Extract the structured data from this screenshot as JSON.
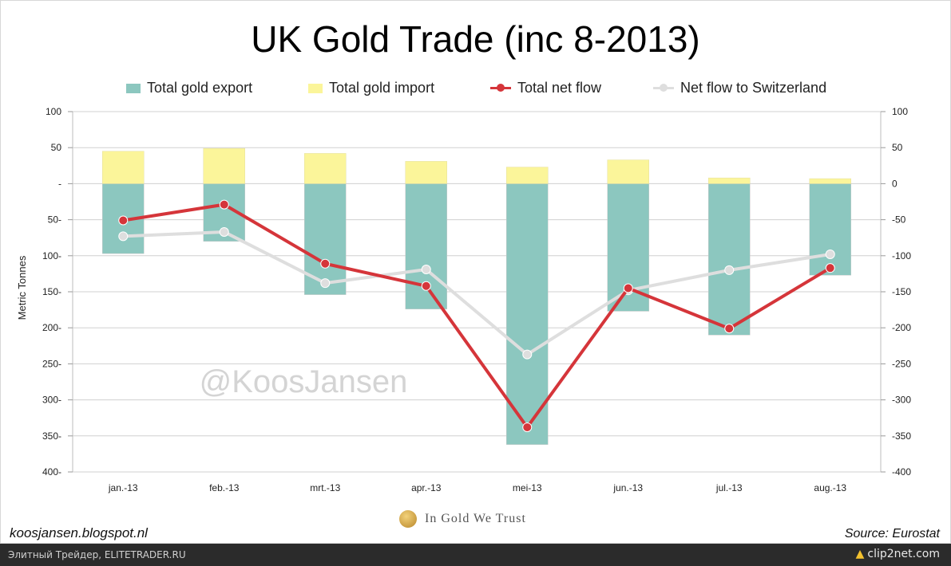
{
  "chart_data": {
    "type": "bar",
    "title": "UK Gold Trade (inc 8-2013)",
    "ylabel": "Metric Tonnes",
    "ylim": [
      -400,
      100
    ],
    "yticks_left": [
      "100",
      "50",
      "-",
      "50-",
      "100-",
      "150-",
      "200-",
      "250-",
      "300-",
      "350-",
      "400-"
    ],
    "yticks_right": [
      "100",
      "50",
      "0",
      "-50",
      "-100",
      "-150",
      "-200",
      "-250",
      "-300",
      "-350",
      "-400"
    ],
    "ytick_values": [
      100,
      50,
      0,
      -50,
      -100,
      -150,
      -200,
      -250,
      -300,
      -350,
      -400
    ],
    "categories": [
      "jan.-13",
      "feb.-13",
      "mrt.-13",
      "apr.-13",
      "mei-13",
      "jun.-13",
      "jul.-13",
      "aug.-13"
    ],
    "grid": true,
    "legend_position": "top",
    "series": [
      {
        "name": "Total gold export",
        "kind": "bar",
        "color": "#8cc7bf",
        "values": [
          -97,
          -80,
          -154,
          -174,
          -362,
          -177,
          -210,
          -127
        ]
      },
      {
        "name": "Total gold import",
        "kind": "bar",
        "color": "#fbf59a",
        "values": [
          45,
          49,
          42,
          31,
          23,
          33,
          8,
          7
        ]
      },
      {
        "name": "Total net flow",
        "kind": "line",
        "color": "#d5353a",
        "values": [
          -51,
          -29,
          -111,
          -142,
          -338,
          -145,
          -201,
          -117
        ]
      },
      {
        "name": "Net flow to Switzerland",
        "kind": "line",
        "color": "#dedede",
        "values": [
          -73,
          -67,
          -138,
          -119,
          -237,
          -148,
          -120,
          -98
        ]
      }
    ]
  },
  "watermark": "@KoosJansen",
  "brand": "In Gold We Trust",
  "footer": {
    "left": "koosjansen.blogspot.nl",
    "right": "Source: Eurostat"
  },
  "bottombar": {
    "left": "Элитный Трейдер, ELITETRADER.RU",
    "right": "clip2net.com"
  }
}
